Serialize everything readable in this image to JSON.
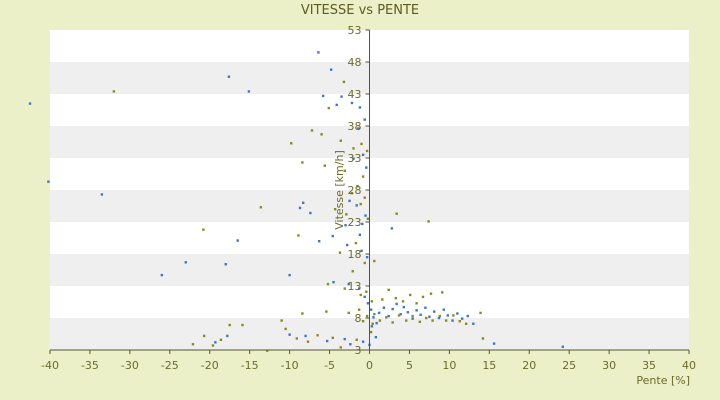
{
  "chart_data": {
    "type": "scatter",
    "title": "VITESSE vs PENTE",
    "xlabel": "Pente [%]",
    "ylabel": "Vitesse [km/h]",
    "xlim": [
      -40,
      40
    ],
    "ylim": [
      3,
      53
    ],
    "xticks": [
      "-40",
      "-35",
      "-30",
      "-25",
      "-20",
      "-15",
      "-10",
      "-5",
      "0",
      "5",
      "10",
      "15",
      "20",
      "25",
      "30",
      "35",
      "40"
    ],
    "yticks": [
      "3",
      "8",
      "13",
      "18",
      "23",
      "28",
      "33",
      "38",
      "43",
      "48",
      "53"
    ],
    "colors": {
      "plot_band_light": "#ffffff",
      "plot_band_dark": "#efefef",
      "page_background": "#ecf0c8",
      "axis": "#555533",
      "text": "#6b6b2a",
      "series_blue": "#3a78c8",
      "series_olive": "#8a8a1e"
    },
    "grid": true,
    "legend": "none",
    "series": [
      {
        "color": "blue",
        "points": [
          [
            -42.5,
            41.5
          ],
          [
            -40.2,
            29.3
          ],
          [
            -33.5,
            27.3
          ],
          [
            -17.6,
            45.7
          ],
          [
            -15.1,
            43.4
          ],
          [
            -6.4,
            49.5
          ],
          [
            -4.8,
            46.8
          ],
          [
            -3.5,
            42.6
          ],
          [
            -2.2,
            41.6
          ],
          [
            -1.2,
            40.9
          ],
          [
            -0.6,
            39.0
          ],
          [
            -5.8,
            42.7
          ],
          [
            -4.1,
            41.3
          ],
          [
            -1.4,
            37.6
          ],
          [
            -0.8,
            33.5
          ],
          [
            -2.0,
            32.9
          ],
          [
            -0.4,
            31.5
          ],
          [
            -8.3,
            26.0
          ],
          [
            -8.7,
            25.2
          ],
          [
            -7.4,
            24.4
          ],
          [
            -2.5,
            26.3
          ],
          [
            -1.6,
            25.6
          ],
          [
            -0.5,
            24.0
          ],
          [
            -0.9,
            22.7
          ],
          [
            -3.0,
            22.5
          ],
          [
            -1.2,
            21.0
          ],
          [
            -4.6,
            20.8
          ],
          [
            -6.3,
            20.0
          ],
          [
            -2.8,
            19.4
          ],
          [
            -1.0,
            18.5
          ],
          [
            -0.3,
            17.5
          ],
          [
            -16.5,
            20.1
          ],
          [
            -23.0,
            16.7
          ],
          [
            -18.0,
            16.4
          ],
          [
            -26.0,
            14.7
          ],
          [
            -10.0,
            14.7
          ],
          [
            -4.5,
            13.6
          ],
          [
            -2.6,
            13.3
          ],
          [
            -1.3,
            12.6
          ],
          [
            -0.6,
            11.3
          ],
          [
            -0.2,
            10.3
          ],
          [
            0.2,
            9.3
          ],
          [
            0.5,
            8.1
          ],
          [
            0.9,
            7.2
          ],
          [
            0.3,
            6.7
          ],
          [
            1.2,
            8.8
          ],
          [
            1.8,
            9.6
          ],
          [
            2.4,
            8.3
          ],
          [
            2.9,
            9.4
          ],
          [
            3.4,
            10.2
          ],
          [
            3.9,
            8.6
          ],
          [
            4.3,
            9.7
          ],
          [
            4.8,
            8.9
          ],
          [
            5.4,
            7.9
          ],
          [
            5.9,
            9.2
          ],
          [
            6.4,
            8.5
          ],
          [
            7.0,
            9.6
          ],
          [
            7.5,
            8.2
          ],
          [
            8.1,
            9.0
          ],
          [
            8.7,
            8.0
          ],
          [
            9.3,
            9.3
          ],
          [
            9.8,
            8.4
          ],
          [
            10.4,
            7.6
          ],
          [
            11.0,
            8.7
          ],
          [
            11.6,
            7.9
          ],
          [
            12.3,
            8.3
          ],
          [
            13.0,
            7.1
          ],
          [
            2.8,
            22.0
          ],
          [
            0.8,
            5.0
          ],
          [
            15.6,
            4.0
          ],
          [
            24.2,
            3.5
          ],
          [
            -8.0,
            5.2
          ],
          [
            -5.3,
            4.4
          ],
          [
            -3.1,
            4.7
          ],
          [
            -2.4,
            3.9
          ],
          [
            -17.8,
            5.2
          ],
          [
            -19.3,
            4.2
          ],
          [
            -10.0,
            5.4
          ],
          [
            0.0,
            3.8
          ],
          [
            -0.8,
            4.3
          ]
        ]
      },
      {
        "color": "olive",
        "points": [
          [
            -32.0,
            43.4
          ],
          [
            -3.2,
            44.9
          ],
          [
            -5.1,
            40.8
          ],
          [
            -7.2,
            37.3
          ],
          [
            -6.0,
            36.7
          ],
          [
            -9.8,
            35.3
          ],
          [
            -3.6,
            35.7
          ],
          [
            -2.0,
            34.5
          ],
          [
            -1.0,
            35.2
          ],
          [
            -0.3,
            34.1
          ],
          [
            -8.4,
            32.3
          ],
          [
            -5.6,
            31.8
          ],
          [
            -3.1,
            31.0
          ],
          [
            -0.8,
            30.1
          ],
          [
            -1.5,
            28.6
          ],
          [
            -2.2,
            27.5
          ],
          [
            -13.6,
            25.3
          ],
          [
            -0.6,
            26.8
          ],
          [
            -1.1,
            25.8
          ],
          [
            -4.3,
            25.0
          ],
          [
            -2.9,
            24.2
          ],
          [
            -0.2,
            23.5
          ],
          [
            3.4,
            24.3
          ],
          [
            -20.8,
            21.8
          ],
          [
            -8.9,
            20.9
          ],
          [
            7.4,
            23.1
          ],
          [
            -1.7,
            19.7
          ],
          [
            -3.7,
            18.2
          ],
          [
            -0.6,
            16.6
          ],
          [
            0.6,
            16.9
          ],
          [
            -2.1,
            15.3
          ],
          [
            -5.2,
            13.3
          ],
          [
            -3.1,
            12.6
          ],
          [
            -1.1,
            11.6
          ],
          [
            -0.4,
            12.1
          ],
          [
            0.3,
            10.6
          ],
          [
            1.6,
            10.9
          ],
          [
            2.4,
            12.4
          ],
          [
            3.3,
            11.1
          ],
          [
            4.2,
            10.6
          ],
          [
            5.1,
            11.6
          ],
          [
            5.9,
            10.3
          ],
          [
            6.7,
            11.3
          ],
          [
            7.7,
            11.8
          ],
          [
            9.1,
            12.0
          ],
          [
            0.6,
            8.6
          ],
          [
            1.3,
            7.6
          ],
          [
            2.1,
            8.1
          ],
          [
            2.9,
            7.3
          ],
          [
            3.7,
            8.4
          ],
          [
            4.6,
            7.6
          ],
          [
            5.4,
            8.3
          ],
          [
            6.3,
            7.4
          ],
          [
            7.1,
            8.0
          ],
          [
            7.9,
            7.6
          ],
          [
            8.8,
            8.3
          ],
          [
            9.6,
            7.6
          ],
          [
            10.5,
            8.4
          ],
          [
            11.3,
            7.5
          ],
          [
            12.1,
            7.1
          ],
          [
            13.9,
            8.8
          ],
          [
            14.2,
            4.8
          ],
          [
            -0.8,
            7.5
          ],
          [
            -0.3,
            8.3
          ],
          [
            0.4,
            7.1
          ],
          [
            -2.6,
            8.8
          ],
          [
            -5.4,
            9.0
          ],
          [
            -8.4,
            8.7
          ],
          [
            -11.0,
            7.6
          ],
          [
            -12.8,
            2.9
          ],
          [
            -15.9,
            6.9
          ],
          [
            -17.5,
            6.9
          ],
          [
            -18.6,
            4.6
          ],
          [
            -19.6,
            3.7
          ],
          [
            -20.7,
            5.2
          ],
          [
            -22.1,
            3.9
          ],
          [
            -10.5,
            6.3
          ],
          [
            -9.1,
            4.8
          ],
          [
            -7.7,
            4.3
          ],
          [
            -6.5,
            5.3
          ],
          [
            -4.6,
            4.9
          ],
          [
            -3.6,
            3.4
          ],
          [
            -1.6,
            4.6
          ],
          [
            0.2,
            5.8
          ],
          [
            -1.3,
            9.3
          ]
        ]
      }
    ]
  }
}
